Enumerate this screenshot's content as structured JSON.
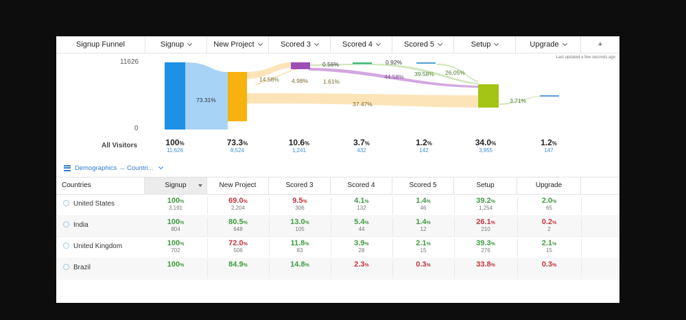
{
  "header": {
    "title": "Signup Funnel",
    "steps": [
      "Signup",
      "New Project",
      "Scored 3",
      "Scored 4",
      "Scored 5",
      "Setup",
      "Upgrade"
    ],
    "add_label": "+"
  },
  "updated_text": "Last updated a few seconds ago",
  "axis": {
    "max": "11626",
    "min": "0"
  },
  "flow_labels": [
    "73.31%",
    "14.58%",
    "4.98%",
    "0.56%",
    "1.61%",
    "0.92%",
    "44.58%",
    "39.58%",
    "26.05%",
    "37.47%",
    "3.71%"
  ],
  "summary": {
    "row_label": "All Visitors",
    "stats": [
      {
        "pct": "100",
        "cnt": "11,626"
      },
      {
        "pct": "73.3",
        "cnt": "8,524"
      },
      {
        "pct": "10.6",
        "cnt": "1,241"
      },
      {
        "pct": "3.7",
        "cnt": "432"
      },
      {
        "pct": "1.2",
        "cnt": "142"
      },
      {
        "pct": "34.0",
        "cnt": "3,955"
      },
      {
        "pct": "1.2",
        "cnt": "147"
      }
    ]
  },
  "segment": {
    "label": "Demographics → Countri..."
  },
  "table": {
    "first_col": "Countries",
    "columns": [
      "Signup",
      "New Project",
      "Scored 3",
      "Scored 4",
      "Scored 5",
      "Setup",
      "Upgrade"
    ],
    "rows": [
      {
        "country": "United States",
        "cells": [
          [
            "100",
            "3,191",
            "g"
          ],
          [
            "69.0",
            "2,204",
            "r"
          ],
          [
            "9.5",
            "306",
            "r"
          ],
          [
            "4.1",
            "132",
            "g"
          ],
          [
            "1.4",
            "46",
            "g"
          ],
          [
            "39.2",
            "1,254",
            "g"
          ],
          [
            "2.0",
            "65",
            "g"
          ]
        ]
      },
      {
        "country": "India",
        "cells": [
          [
            "100",
            "804",
            "g"
          ],
          [
            "80.5",
            "648",
            "g"
          ],
          [
            "13.0",
            "105",
            "g"
          ],
          [
            "5.4",
            "44",
            "g"
          ],
          [
            "1.4",
            "12",
            "g"
          ],
          [
            "26.1",
            "210",
            "r"
          ],
          [
            "0.2",
            "2",
            "r"
          ]
        ]
      },
      {
        "country": "United Kingdom",
        "cells": [
          [
            "100",
            "702",
            "g"
          ],
          [
            "72.0",
            "506",
            "r"
          ],
          [
            "11.8",
            "83",
            "g"
          ],
          [
            "3.9",
            "28",
            "g"
          ],
          [
            "2.1",
            "15",
            "g"
          ],
          [
            "39.3",
            "276",
            "g"
          ],
          [
            "2.1",
            "15",
            "g"
          ]
        ]
      },
      {
        "country": "Brazil",
        "cells": [
          [
            "100",
            "",
            "g"
          ],
          [
            "84.9",
            "",
            "g"
          ],
          [
            "14.8",
            "",
            "g"
          ],
          [
            "2.3",
            "",
            "r"
          ],
          [
            "0.3",
            "",
            "r"
          ],
          [
            "33.8",
            "",
            "r"
          ],
          [
            "0.3",
            "",
            "r"
          ]
        ]
      }
    ]
  },
  "colors": {
    "signup": "#1e90e8",
    "newproject": "#f7b20e",
    "scored3": "#9b4fb5",
    "scored4": "#4fc080",
    "scored5": "#4a9fd8",
    "setup": "#a4c416",
    "upgrade": "#5b9bd5",
    "flow_blue": "#a7d3f6",
    "flow_orange": "#fde4b8",
    "flow_green": "#cfe6b9",
    "flow_purple": "#d3a7e0"
  }
}
